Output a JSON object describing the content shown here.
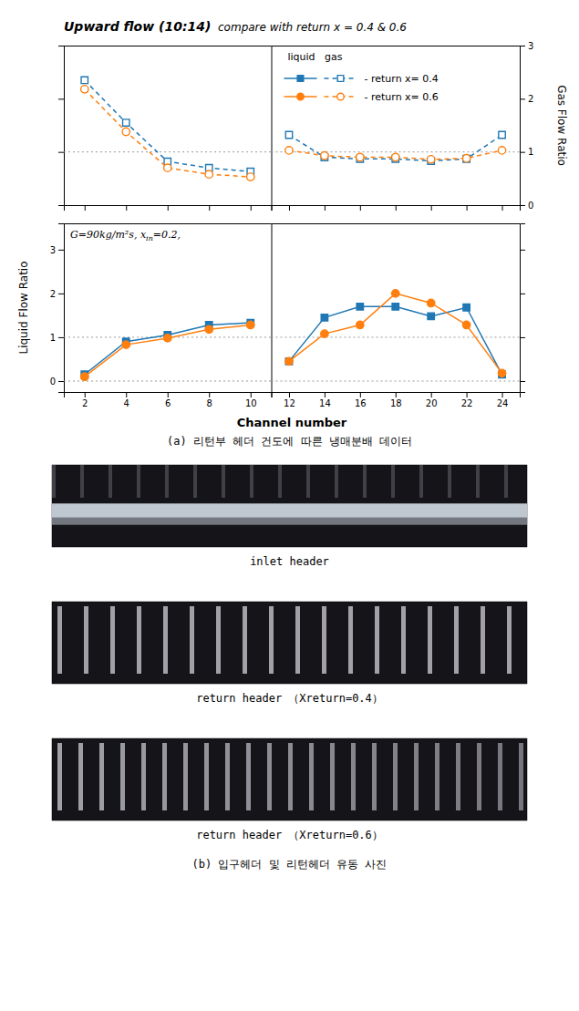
{
  "chart_data": [
    {
      "type": "line",
      "title": "Upward flow (10:14)",
      "subtitle": "  compare with return x = 0.4 & 0.6",
      "x": [
        2,
        4,
        6,
        8,
        10
      ],
      "xlim": [
        1,
        11
      ],
      "xticks": [
        2,
        4,
        6,
        8,
        10
      ],
      "ylim": [
        0,
        3
      ],
      "yticks": [
        0,
        1,
        2,
        3
      ],
      "tick_labels": false,
      "hlines": [
        1
      ],
      "series": [
        {
          "marker": "open-square",
          "line_style": "dashed",
          "values": [
            2.35,
            1.55,
            0.82,
            0.7,
            0.63
          ]
        },
        {
          "marker": "open-circle",
          "line_style": "dashed",
          "values": [
            2.18,
            1.38,
            0.7,
            0.58,
            0.53
          ]
        }
      ]
    },
    {
      "type": "line",
      "ylabel": "Gas Flow Ratio",
      "x": [
        12,
        14,
        16,
        18,
        20,
        22,
        24
      ],
      "xlim": [
        11,
        25
      ],
      "xticks": [
        12,
        14,
        16,
        18,
        20,
        22,
        24
      ],
      "ylim": [
        0,
        3
      ],
      "yticks": [
        0,
        1,
        2,
        3
      ],
      "tick_labels": "y",
      "hlines": [
        1
      ],
      "legend": "upper left",
      "legend_title": "liquid   gas",
      "series": [
        {
          "name": "- return x= 0.4",
          "marker": "open-square",
          "line_style": "dashed",
          "values": [
            1.32,
            0.9,
            0.87,
            0.87,
            0.83,
            0.87,
            1.32
          ]
        },
        {
          "name": "- return x= 0.6",
          "marker": "open-circle",
          "line_style": "dashed",
          "values": [
            1.03,
            0.93,
            0.9,
            0.9,
            0.86,
            0.88,
            1.03
          ]
        }
      ]
    },
    {
      "type": "line",
      "xlabel": "Channel number",
      "ylabel": "Liquid Flow Ratio",
      "annotation": "G=90kg/m²s, x",
      "annotation_sub": "in",
      "annotation_end": "=0.2,",
      "x": [
        2,
        4,
        6,
        8,
        10
      ],
      "xlim": [
        1,
        11
      ],
      "xticks": [
        2,
        4,
        6,
        8,
        10
      ],
      "ylim": [
        -0.25,
        3.6
      ],
      "yticks": [
        0,
        1,
        2,
        3
      ],
      "tick_labels": true,
      "hlines": [
        0,
        1
      ],
      "series": [
        {
          "marker": "square",
          "line_style": "solid",
          "values": [
            0.15,
            0.9,
            1.05,
            1.28,
            1.33
          ]
        },
        {
          "marker": "circle",
          "line_style": "solid",
          "values": [
            0.1,
            0.83,
            0.98,
            1.18,
            1.28
          ]
        }
      ]
    },
    {
      "type": "line",
      "x": [
        12,
        14,
        16,
        18,
        20,
        22,
        24
      ],
      "xlim": [
        11,
        25
      ],
      "xticks": [
        12,
        14,
        16,
        18,
        20,
        22,
        24
      ],
      "ylim": [
        -0.25,
        3.6
      ],
      "yticks": [
        0,
        1,
        2,
        3
      ],
      "tick_labels": "x",
      "hlines": [
        0,
        1
      ],
      "series": [
        {
          "marker": "square",
          "line_style": "solid",
          "values": [
            0.45,
            1.45,
            1.7,
            1.7,
            1.48,
            1.68,
            0.15
          ]
        },
        {
          "marker": "circle",
          "line_style": "solid",
          "values": [
            0.45,
            1.08,
            1.28,
            2.0,
            1.78,
            1.28,
            0.18
          ]
        }
      ]
    }
  ],
  "captions": [
    "(a) 리턴부 헤더 건도에 따른 냉매분배 데이터",
    "inlet header",
    "return header （Xreturn=0.4）",
    "return header （Xreturn=0.6）",
    "(b) 입구헤더 및 리턴헤더 유동 사진"
  ]
}
